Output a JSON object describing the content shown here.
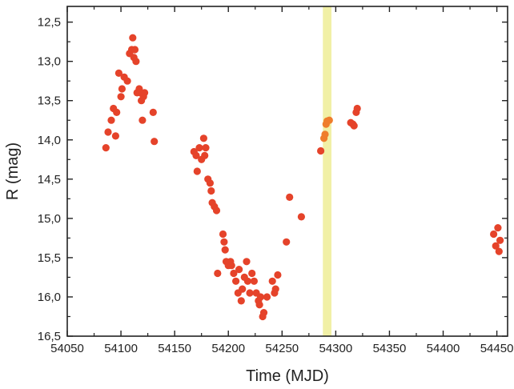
{
  "chart_data": {
    "type": "scatter",
    "title": "",
    "xlabel": "Time (MJD)",
    "ylabel": "R (mag)",
    "xlim": [
      54050,
      54460
    ],
    "ylim": [
      16.5,
      12.3
    ],
    "y_inverted": true,
    "grid": false,
    "legend": "none",
    "x_ticks": [
      "54050",
      "54100",
      "54150",
      "54200",
      "54250",
      "54300",
      "54350",
      "54400",
      "54450"
    ],
    "y_ticks": [
      "12,5",
      "13,0",
      "13,5",
      "14,0",
      "14,5",
      "15,0",
      "15,5",
      "16,0",
      "16,5"
    ],
    "highlight_band": {
      "x_from": 54288,
      "x_to": 54296,
      "color": "#f1f0a6"
    },
    "colors": {
      "point": "#e5432a",
      "highlighted_point": "#ef7d2c",
      "axis": "#222222"
    },
    "series": [
      {
        "points": [
          [
            54086,
            14.1
          ],
          [
            54088,
            13.9
          ],
          [
            54091,
            13.75
          ],
          [
            54093,
            13.6
          ],
          [
            54095,
            13.95
          ],
          [
            54096,
            13.65
          ],
          [
            54098,
            13.15
          ],
          [
            54100,
            13.45
          ],
          [
            54101,
            13.35
          ],
          [
            54103,
            13.2
          ],
          [
            54106,
            13.25
          ],
          [
            54108,
            12.9
          ],
          [
            54110,
            12.85
          ],
          [
            54111,
            12.7
          ],
          [
            54112,
            12.95
          ],
          [
            54113,
            12.85
          ],
          [
            54114,
            13.0
          ],
          [
            54115,
            13.4
          ],
          [
            54117,
            13.35
          ],
          [
            54118,
            13.4
          ],
          [
            54119,
            13.5
          ],
          [
            54120,
            13.75
          ],
          [
            54121,
            13.45
          ],
          [
            54122,
            13.4
          ],
          [
            54130,
            13.65
          ],
          [
            54131,
            14.02
          ],
          [
            54168,
            14.15
          ],
          [
            54170,
            14.2
          ],
          [
            54171,
            14.4
          ],
          [
            54173,
            14.1
          ],
          [
            54175,
            14.25
          ],
          [
            54177,
            13.98
          ],
          [
            54178,
            14.2
          ],
          [
            54179,
            14.1
          ],
          [
            54181,
            14.5
          ],
          [
            54183,
            14.55
          ],
          [
            54184,
            14.65
          ],
          [
            54185,
            14.8
          ],
          [
            54187,
            14.85
          ],
          [
            54189,
            14.9
          ],
          [
            54190,
            15.7
          ],
          [
            54195,
            15.2
          ],
          [
            54196,
            15.3
          ],
          [
            54197,
            15.4
          ],
          [
            54198,
            15.55
          ],
          [
            54200,
            15.6
          ],
          [
            54202,
            15.55
          ],
          [
            54203,
            15.6
          ],
          [
            54205,
            15.7
          ],
          [
            54207,
            15.8
          ],
          [
            54209,
            15.95
          ],
          [
            54210,
            15.65
          ],
          [
            54212,
            16.05
          ],
          [
            54213,
            15.9
          ],
          [
            54215,
            15.75
          ],
          [
            54217,
            15.55
          ],
          [
            54218,
            15.8
          ],
          [
            54220,
            15.95
          ],
          [
            54222,
            15.7
          ],
          [
            54224,
            15.8
          ],
          [
            54226,
            15.95
          ],
          [
            54228,
            16.05
          ],
          [
            54229,
            16.1
          ],
          [
            54230,
            16.0
          ],
          [
            54232,
            16.25
          ],
          [
            54233,
            16.2
          ],
          [
            54236,
            16.0
          ],
          [
            54241,
            15.8
          ],
          [
            54243,
            15.95
          ],
          [
            54244,
            15.9
          ],
          [
            54246,
            15.72
          ],
          [
            54254,
            15.3
          ],
          [
            54257,
            14.73
          ],
          [
            54268,
            14.98
          ],
          [
            54286,
            14.14
          ],
          [
            54314,
            13.78
          ],
          [
            54316,
            13.8
          ],
          [
            54317,
            13.82
          ],
          [
            54319,
            13.65
          ],
          [
            54320,
            13.6
          ],
          [
            54447,
            15.2
          ],
          [
            54449,
            15.35
          ],
          [
            54451,
            15.12
          ],
          [
            54452,
            15.42
          ],
          [
            54453,
            15.28
          ]
        ]
      },
      {
        "highlighted": true,
        "points": [
          [
            54289,
            13.98
          ],
          [
            54290,
            13.93
          ],
          [
            54292,
            13.76
          ],
          [
            54294,
            13.75
          ],
          [
            54291,
            13.8
          ]
        ]
      }
    ]
  }
}
